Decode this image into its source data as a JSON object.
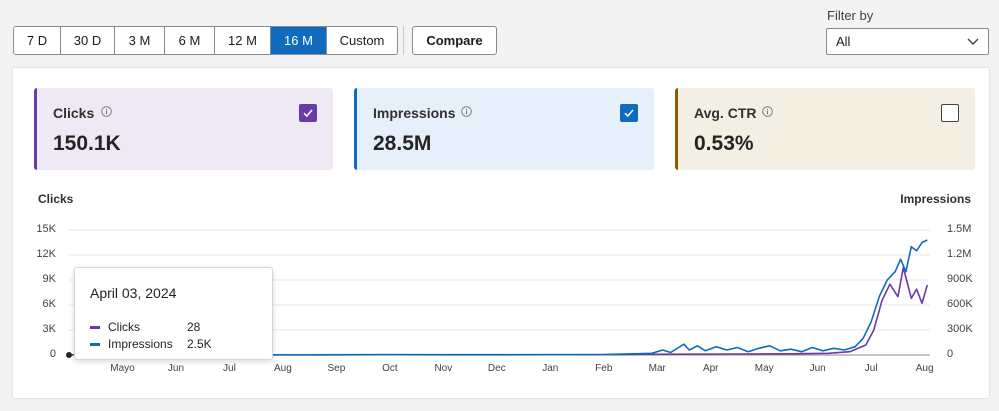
{
  "toolbar": {
    "ranges": [
      {
        "label": "7 D",
        "active": false
      },
      {
        "label": "30 D",
        "active": false
      },
      {
        "label": "3 M",
        "active": false
      },
      {
        "label": "6 M",
        "active": false
      },
      {
        "label": "12 M",
        "active": false
      },
      {
        "label": "16 M",
        "active": true
      },
      {
        "label": "Custom",
        "active": false
      }
    ],
    "compare_label": "Compare"
  },
  "filter": {
    "label": "Filter by",
    "selected": "All"
  },
  "cards": {
    "clicks": {
      "label": "Clicks",
      "value": "150.1K",
      "checked": true,
      "color": "#6a3ba6"
    },
    "impressions": {
      "label": "Impressions",
      "value": "28.5M",
      "checked": true,
      "color": "#0f6cbd"
    },
    "ctr": {
      "label": "Avg. CTR",
      "value": "0.53%",
      "checked": false,
      "color": "#8e5b00"
    }
  },
  "tooltip": {
    "date": "April 03, 2024",
    "rows": [
      {
        "label": "Clicks",
        "value": "28"
      },
      {
        "label": "Impressions",
        "value": "2.5K"
      }
    ]
  },
  "chart_data": {
    "type": "line",
    "ylabel": "Clicks",
    "ylabel_right": "Impressions",
    "yticks_left": [
      "0",
      "3K",
      "6K",
      "9K",
      "12K",
      "15K"
    ],
    "yticks_right": [
      "0",
      "300K",
      "600K",
      "900K",
      "1.2M",
      "1.5M"
    ],
    "ylim_left": [
      0,
      15000
    ],
    "ylim_right": [
      0,
      1500000
    ],
    "x_ticks": [
      "Mayo",
      "Jun",
      "Jul",
      "Aug",
      "Sep",
      "Oct",
      "Nov",
      "Dec",
      "Jan",
      "Feb",
      "Mar",
      "Apr",
      "May",
      "Jun",
      "Jul",
      "Aug"
    ],
    "x_month_index": [
      1,
      2,
      3,
      4,
      5,
      6,
      7,
      8,
      9,
      10,
      11,
      12,
      13,
      14,
      15,
      16
    ],
    "grid": true,
    "series": [
      {
        "name": "Clicks",
        "color": "#6a3ba6",
        "axis": "left",
        "points": [
          [
            0,
            28
          ],
          [
            1,
            30
          ],
          [
            2,
            25
          ],
          [
            3,
            30
          ],
          [
            4,
            28
          ],
          [
            5,
            30
          ],
          [
            6,
            32
          ],
          [
            7,
            30
          ],
          [
            8,
            30
          ],
          [
            9,
            35
          ],
          [
            10,
            40
          ],
          [
            10.8,
            80
          ],
          [
            11.5,
            100
          ],
          [
            12.5,
            120
          ],
          [
            13.5,
            150
          ],
          [
            14.2,
            200
          ],
          [
            14.6,
            400
          ],
          [
            14.9,
            1200
          ],
          [
            15.05,
            3000
          ],
          [
            15.2,
            6500
          ],
          [
            15.35,
            8500
          ],
          [
            15.5,
            7000
          ],
          [
            15.6,
            10500
          ],
          [
            15.75,
            6800
          ],
          [
            15.85,
            7900
          ],
          [
            15.95,
            6200
          ],
          [
            16.05,
            8400
          ]
        ]
      },
      {
        "name": "Impressions",
        "color": "#0f6cbd",
        "axis": "right",
        "points": [
          [
            0,
            2500
          ],
          [
            2,
            3000
          ],
          [
            4,
            3000
          ],
          [
            6,
            3500
          ],
          [
            8,
            4000
          ],
          [
            10,
            5000
          ],
          [
            10.9,
            20000
          ],
          [
            11.1,
            60000
          ],
          [
            11.25,
            30000
          ],
          [
            11.5,
            130000
          ],
          [
            11.6,
            60000
          ],
          [
            11.75,
            110000
          ],
          [
            11.9,
            50000
          ],
          [
            12.1,
            100000
          ],
          [
            12.3,
            60000
          ],
          [
            12.5,
            90000
          ],
          [
            12.7,
            40000
          ],
          [
            12.9,
            80000
          ],
          [
            13.1,
            110000
          ],
          [
            13.3,
            50000
          ],
          [
            13.5,
            70000
          ],
          [
            13.7,
            40000
          ],
          [
            13.9,
            90000
          ],
          [
            14.1,
            50000
          ],
          [
            14.3,
            80000
          ],
          [
            14.5,
            60000
          ],
          [
            14.7,
            100000
          ],
          [
            14.85,
            200000
          ],
          [
            15.0,
            400000
          ],
          [
            15.15,
            700000
          ],
          [
            15.3,
            900000
          ],
          [
            15.45,
            1000000
          ],
          [
            15.55,
            1150000
          ],
          [
            15.65,
            1000000
          ],
          [
            15.75,
            1300000
          ],
          [
            15.85,
            1250000
          ],
          [
            15.95,
            1350000
          ],
          [
            16.05,
            1380000
          ]
        ]
      }
    ]
  }
}
